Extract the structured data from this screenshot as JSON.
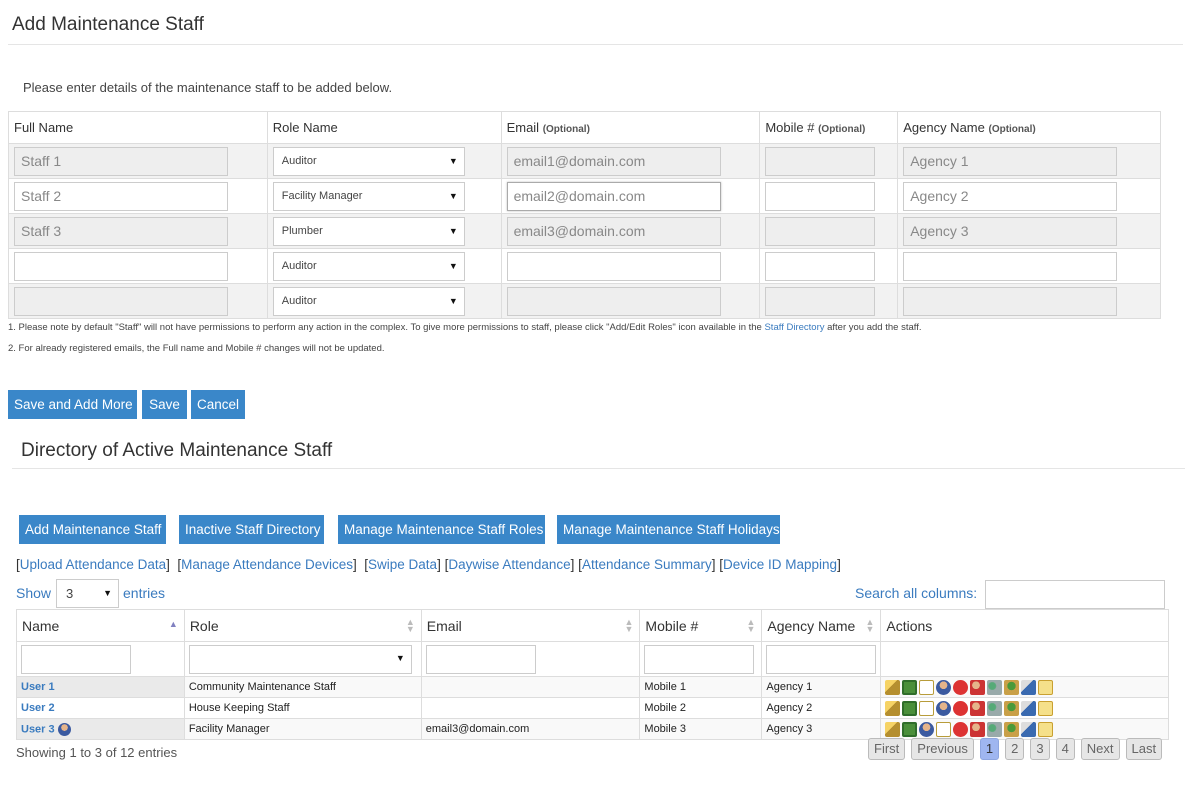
{
  "add_section": {
    "title": "Add Maintenance Staff",
    "intro": "Please enter details of the maintenance staff to be added below.",
    "columns": {
      "full_name": "Full Name",
      "role_name": "Role Name",
      "email": "Email",
      "mobile": "Mobile #",
      "agency": "Agency Name",
      "optional": "(Optional)"
    },
    "rows": [
      {
        "full_name": "Staff 1",
        "role": "Auditor",
        "email": "email1@domain.com",
        "mobile": "",
        "agency": "Agency 1"
      },
      {
        "full_name": "Staff 2",
        "role": "Facility Manager",
        "email": "email2@domain.com",
        "mobile": "",
        "agency": "Agency 2"
      },
      {
        "full_name": "Staff 3",
        "role": "Plumber",
        "email": "email3@domain.com",
        "mobile": "",
        "agency": "Agency 3"
      },
      {
        "full_name": "",
        "role": "Auditor",
        "email": "",
        "mobile": "",
        "agency": ""
      },
      {
        "full_name": "",
        "role": "Auditor",
        "email": "",
        "mobile": "",
        "agency": ""
      }
    ],
    "note1_pre": "1. Please note by default \"Staff\" will not have permissions to perform any action in the complex. To give more permissions to staff, please click \"Add/Edit Roles\" icon available in the",
    "note1_link": "Staff Directory",
    "note1_post": "after you add the staff.",
    "note2": "2. For already registered emails, the Full name and Mobile # changes will not be updated.",
    "buttons": {
      "save_add_more": "Save and Add More",
      "save": "Save",
      "cancel": "Cancel"
    }
  },
  "directory": {
    "title": "Directory of Active Maintenance Staff",
    "action_buttons": {
      "add": "Add Maintenance Staff",
      "inactive": "Inactive Staff Directory",
      "roles": "Manage Maintenance Staff Roles",
      "holidays": "Manage Maintenance Staff Holidays"
    },
    "links": {
      "upload": "Upload Attendance Data",
      "devices": "Manage Attendance Devices",
      "swipe": "Swipe Data",
      "daywise": "Daywise Attendance",
      "summary": "Attendance Summary",
      "mapping": "Device ID Mapping"
    },
    "show_label": "Show",
    "page_length": "3",
    "entries_label": "entries",
    "search_label": "Search all columns:",
    "columns": {
      "name": "Name",
      "role": "Role",
      "email": "Email",
      "mobile": "Mobile #",
      "agency": "Agency Name",
      "actions": "Actions"
    },
    "rows": [
      {
        "name": "User 1",
        "role": "Community Maintenance Staff",
        "email": "",
        "mobile": "Mobile 1",
        "agency": "Agency 1"
      },
      {
        "name": "User 2",
        "role": "House Keeping Staff",
        "email": "",
        "mobile": "Mobile 2",
        "agency": "Agency 2"
      },
      {
        "name": "User 3",
        "role": "Facility Manager",
        "email": "email3@domain.com",
        "mobile": "Mobile 3",
        "agency": "Agency 3"
      }
    ],
    "info": "Showing 1 to 3 of 12 entries",
    "pagination": {
      "first": "First",
      "previous": "Previous",
      "pages": [
        "1",
        "2",
        "3",
        "4"
      ],
      "current": "1",
      "next": "Next",
      "last": "Last"
    }
  },
  "colors": {
    "button": "#3a87c9",
    "link": "#3a7bbf",
    "current_page": "#9fb6f0"
  }
}
